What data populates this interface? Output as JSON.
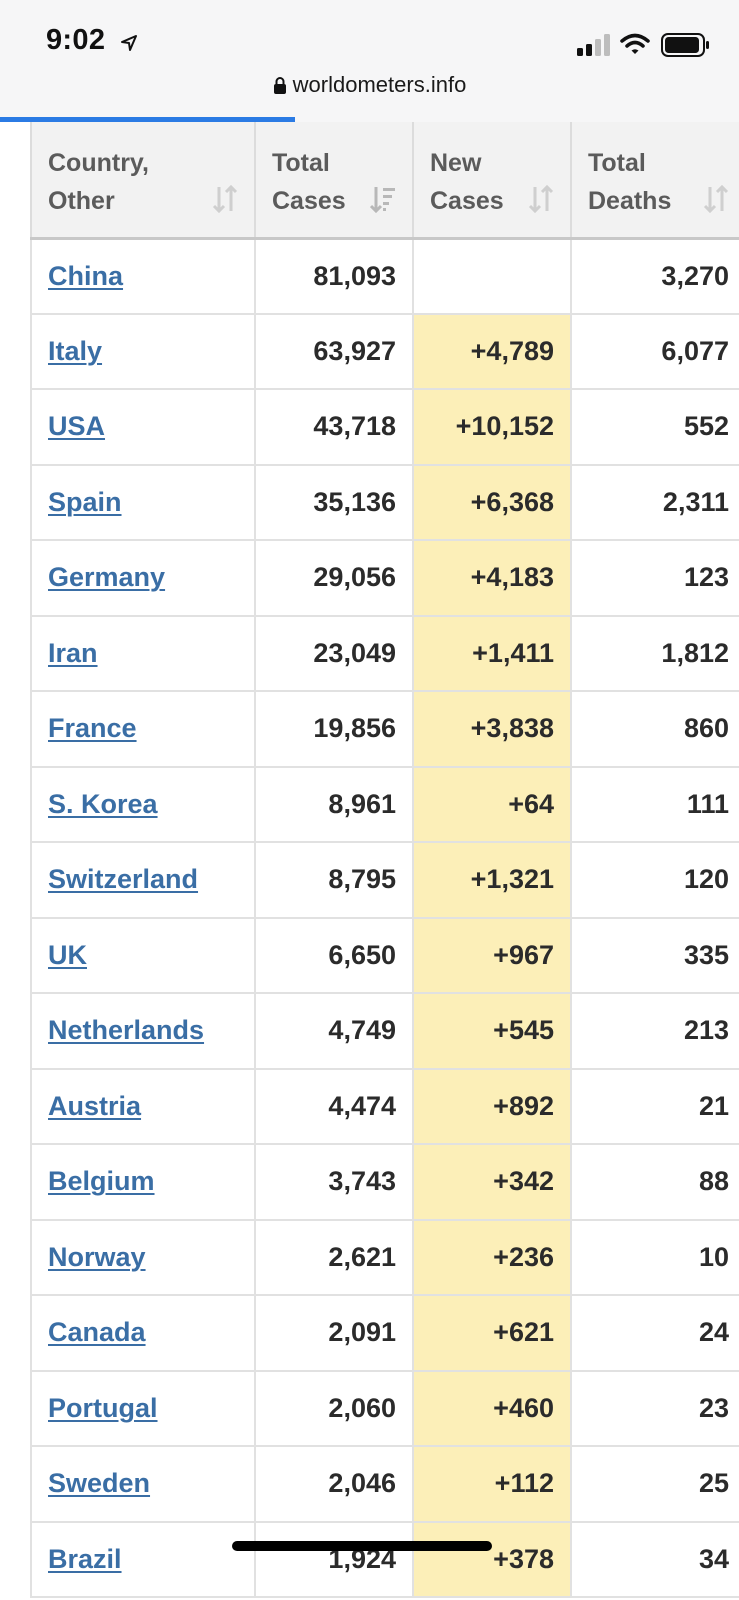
{
  "status_bar": {
    "time": "9:02"
  },
  "url_bar": {
    "domain": "worldometers.info"
  },
  "table": {
    "headers": [
      {
        "line1": "Country,",
        "line2": "Other"
      },
      {
        "line1": "Total",
        "line2": "Cases"
      },
      {
        "line1": "New",
        "line2": "Cases"
      },
      {
        "line1": "Total",
        "line2": "Deaths"
      }
    ],
    "rows": [
      {
        "country": "China",
        "total_cases": "81,093",
        "new_cases": "",
        "total_deaths": "3,270"
      },
      {
        "country": "Italy",
        "total_cases": "63,927",
        "new_cases": "+4,789",
        "total_deaths": "6,077"
      },
      {
        "country": "USA",
        "total_cases": "43,718",
        "new_cases": "+10,152",
        "total_deaths": "552"
      },
      {
        "country": "Spain",
        "total_cases": "35,136",
        "new_cases": "+6,368",
        "total_deaths": "2,311"
      },
      {
        "country": "Germany",
        "total_cases": "29,056",
        "new_cases": "+4,183",
        "total_deaths": "123"
      },
      {
        "country": "Iran",
        "total_cases": "23,049",
        "new_cases": "+1,411",
        "total_deaths": "1,812"
      },
      {
        "country": "France",
        "total_cases": "19,856",
        "new_cases": "+3,838",
        "total_deaths": "860"
      },
      {
        "country": "S. Korea",
        "total_cases": "8,961",
        "new_cases": "+64",
        "total_deaths": "111"
      },
      {
        "country": "Switzerland",
        "total_cases": "8,795",
        "new_cases": "+1,321",
        "total_deaths": "120"
      },
      {
        "country": "UK",
        "total_cases": "6,650",
        "new_cases": "+967",
        "total_deaths": "335"
      },
      {
        "country": "Netherlands",
        "total_cases": "4,749",
        "new_cases": "+545",
        "total_deaths": "213"
      },
      {
        "country": "Austria",
        "total_cases": "4,474",
        "new_cases": "+892",
        "total_deaths": "21"
      },
      {
        "country": "Belgium",
        "total_cases": "3,743",
        "new_cases": "+342",
        "total_deaths": "88"
      },
      {
        "country": "Norway",
        "total_cases": "2,621",
        "new_cases": "+236",
        "total_deaths": "10"
      },
      {
        "country": "Canada",
        "total_cases": "2,091",
        "new_cases": "+621",
        "total_deaths": "24"
      },
      {
        "country": "Portugal",
        "total_cases": "2,060",
        "new_cases": "+460",
        "total_deaths": "23"
      },
      {
        "country": "Sweden",
        "total_cases": "2,046",
        "new_cases": "+112",
        "total_deaths": "25"
      },
      {
        "country": "Brazil",
        "total_cases": "1,924",
        "new_cases": "+378",
        "total_deaths": "34"
      }
    ]
  },
  "colors": {
    "new_cases_highlight": "#fcefb8",
    "link": "#3a6ea5",
    "progress": "#2b7be4"
  },
  "icons": {
    "location": "location-arrow-icon",
    "signal": "cellular-signal-icon",
    "wifi": "wifi-icon",
    "battery": "battery-icon",
    "lock": "lock-icon",
    "sort": "sort-icon",
    "sort_active": "sort-descending-icon"
  }
}
